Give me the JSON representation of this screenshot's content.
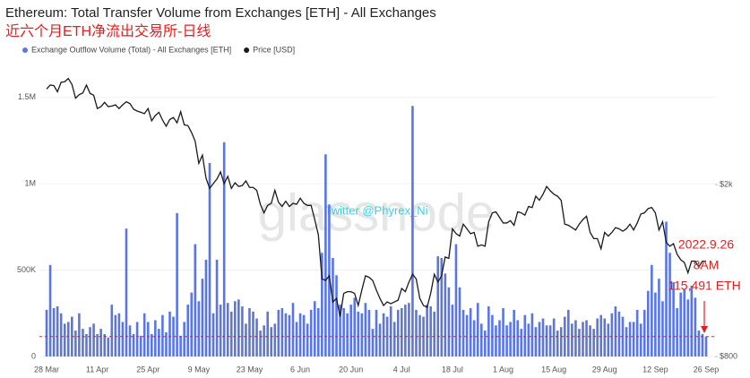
{
  "chart_data": {
    "type": "bar-line",
    "title": "Ethereum: Total Transfer Volume from Exchanges [ETH] - All Exchanges",
    "subtitle": "近六个月ETH净流出交易所-日线",
    "watermark": "glassnode",
    "credit": "Twitter @Phyrex_Ni",
    "annotations": [
      "2022.9.26",
      "8AM",
      "115,491 ETH"
    ],
    "categories": [
      "28 Mar",
      null,
      null,
      null,
      null,
      null,
      null,
      null,
      null,
      null,
      null,
      null,
      null,
      null,
      "11 Apr",
      null,
      null,
      null,
      null,
      null,
      null,
      null,
      null,
      null,
      null,
      null,
      null,
      null,
      "25 Apr",
      null,
      null,
      null,
      null,
      null,
      null,
      null,
      null,
      null,
      null,
      null,
      null,
      null,
      "9 May",
      null,
      null,
      null,
      null,
      null,
      null,
      null,
      null,
      null,
      null,
      null,
      null,
      null,
      "23 May",
      null,
      null,
      null,
      null,
      null,
      null,
      null,
      null,
      null,
      null,
      null,
      null,
      null,
      "6 Jun",
      null,
      null,
      null,
      null,
      null,
      null,
      null,
      null,
      null,
      null,
      null,
      null,
      null,
      "20 Jun",
      null,
      null,
      null,
      null,
      null,
      null,
      null,
      null,
      null,
      null,
      null,
      null,
      null,
      "4 Jul",
      null,
      null,
      null,
      null,
      null,
      null,
      null,
      null,
      null,
      null,
      null,
      null,
      null,
      "18 Jul",
      null,
      null,
      null,
      null,
      null,
      null,
      null,
      null,
      null,
      null,
      null,
      null,
      null,
      "1 Aug",
      null,
      null,
      null,
      null,
      null,
      null,
      null,
      null,
      null,
      null,
      null,
      null,
      null,
      "15 Aug",
      null,
      null,
      null,
      null,
      null,
      null,
      null,
      null,
      null,
      null,
      null,
      null,
      null,
      "29 Aug",
      null,
      null,
      null,
      null,
      null,
      null,
      null,
      null,
      null,
      null,
      null,
      null,
      null,
      "12 Sep",
      null,
      null,
      null,
      null,
      null,
      null,
      null,
      null,
      null,
      null,
      null,
      null,
      null,
      "26 Sep"
    ],
    "series": [
      {
        "name": "Exchange Outflow Volume (Total) - All Exchanges [ETH]",
        "color": "#5b76e3",
        "values": [
          270000,
          530000,
          280000,
          290000,
          250000,
          190000,
          200000,
          230000,
          150000,
          250000,
          160000,
          130000,
          170000,
          190000,
          130000,
          160000,
          130000,
          110000,
          300000,
          240000,
          250000,
          200000,
          740000,
          180000,
          130000,
          200000,
          120000,
          250000,
          200000,
          130000,
          210000,
          160000,
          240000,
          140000,
          260000,
          230000,
          830000,
          120000,
          200000,
          300000,
          370000,
          650000,
          320000,
          450000,
          560000,
          1120000,
          250000,
          560000,
          300000,
          1240000,
          310000,
          260000,
          320000,
          330000,
          290000,
          190000,
          280000,
          260000,
          220000,
          150000,
          180000,
          260000,
          170000,
          190000,
          270000,
          280000,
          250000,
          240000,
          310000,
          200000,
          250000,
          240000,
          190000,
          270000,
          320000,
          280000,
          600000,
          1170000,
          880000,
          570000,
          470000,
          300000,
          280000,
          250000,
          300000,
          340000,
          260000,
          250000,
          310000,
          270000,
          160000,
          270000,
          190000,
          250000,
          230000,
          290000,
          200000,
          270000,
          280000,
          300000,
          310000,
          1450000,
          270000,
          240000,
          230000,
          300000,
          290000,
          260000,
          580000,
          570000,
          480000,
          400000,
          300000,
          650000,
          400000,
          270000,
          240000,
          280000,
          210000,
          310000,
          190000,
          150000,
          290000,
          240000,
          180000,
          210000,
          280000,
          180000,
          200000,
          270000,
          210000,
          160000,
          240000,
          190000,
          250000,
          170000,
          200000,
          220000,
          180000,
          180000,
          220000,
          150000,
          170000,
          230000,
          270000,
          190000,
          210000,
          160000,
          200000,
          210000,
          180000,
          160000,
          220000,
          240000,
          220000,
          190000,
          250000,
          290000,
          260000,
          230000,
          170000,
          200000,
          200000,
          270000,
          190000,
          270000,
          380000,
          530000,
          370000,
          450000,
          320000,
          780000,
          600000,
          430000,
          280000,
          370000,
          390000,
          330000,
          410000,
          340000,
          150000,
          130000,
          115491
        ]
      },
      {
        "name": "Price [USD]",
        "color": "#1a1a1a",
        "axis": "y2",
        "values": [
          3330,
          3400,
          3390,
          3280,
          3450,
          3460,
          3520,
          3410,
          3170,
          3230,
          3260,
          3400,
          3250,
          3220,
          3000,
          3030,
          3100,
          3030,
          3040,
          3060,
          3000,
          3060,
          3110,
          3080,
          2990,
          2960,
          2940,
          2920,
          3000,
          2810,
          2890,
          2940,
          2820,
          2730,
          2830,
          2860,
          2780,
          2950,
          2750,
          2740,
          2640,
          2520,
          2240,
          2340,
          2070,
          1960,
          2010,
          2060,
          2140,
          2010,
          2090,
          1960,
          2020,
          1980,
          1990,
          2040,
          1970,
          1970,
          1940,
          1800,
          1720,
          1790,
          1810,
          1940,
          1820,
          1780,
          1830,
          1780,
          1810,
          1800,
          1860,
          1810,
          1790,
          1790,
          1660,
          1530,
          1210,
          1200,
          1230,
          1070,
          1090,
          990,
          1120,
          1130,
          1130,
          1120,
          1050,
          1140,
          1230,
          1220,
          1200,
          1140,
          1090,
          1050,
          1070,
          1060,
          1070,
          1080,
          1150,
          1130,
          1190,
          1240,
          1210,
          1090,
          1050,
          1040,
          1120,
          1240,
          1190,
          1230,
          1360,
          1350,
          1580,
          1540,
          1520,
          1620,
          1580,
          1540,
          1550,
          1440,
          1450,
          1440,
          1640,
          1720,
          1730,
          1680,
          1630,
          1630,
          1650,
          1610,
          1730,
          1720,
          1700,
          1780,
          1770,
          1880,
          1840,
          1900,
          1980,
          1935,
          1900,
          1880,
          1840,
          1620,
          1610,
          1590,
          1570,
          1620,
          1660,
          1690,
          1550,
          1500,
          1500,
          1420,
          1550,
          1520,
          1550,
          1590,
          1580,
          1560,
          1580,
          1620,
          1570,
          1630,
          1710,
          1720,
          1760,
          1770,
          1720,
          1570,
          1640,
          1470,
          1440,
          1460,
          1380,
          1340,
          1320,
          1250,
          1330,
          1330,
          1290,
          1330,
          1330
        ]
      }
    ],
    "ylim": [
      0,
      1700000
    ],
    "yticks": [
      0,
      {
        "value": 500000,
        "label": "500K"
      },
      {
        "value": 1000000,
        "label": "1M"
      },
      {
        "value": 1500000,
        "label": "1.5M"
      }
    ],
    "y2lim": [
      800,
      3830
    ],
    "y2scale": "log",
    "y2ticks": [
      {
        "value": 800,
        "label": "$800"
      },
      {
        "value": 2000,
        "label": "$2k"
      }
    ],
    "grid": true
  }
}
